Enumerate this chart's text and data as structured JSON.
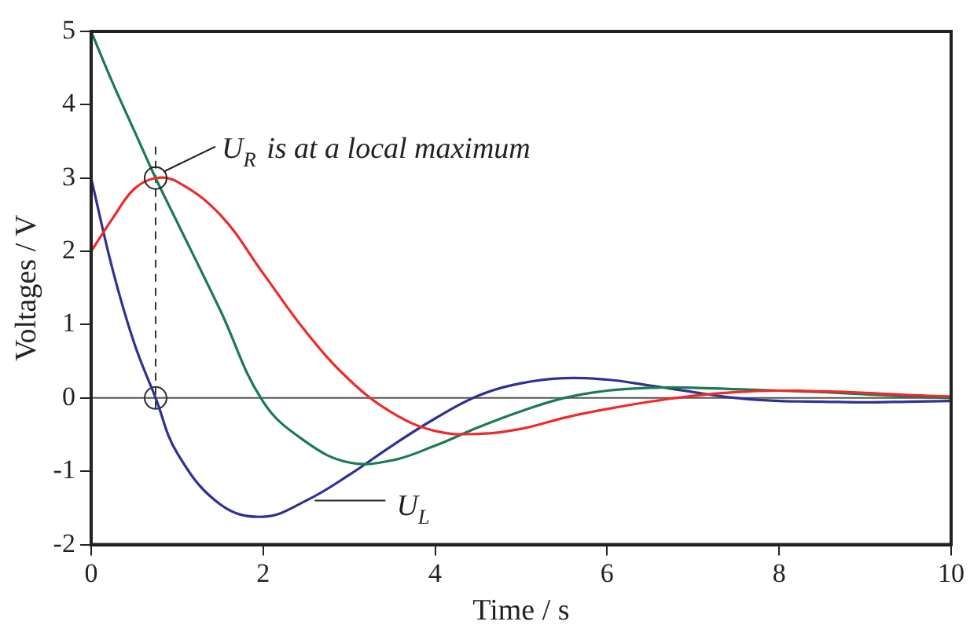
{
  "chart_data": {
    "type": "line",
    "xlabel": "Time / s",
    "ylabel": "Voltages / V",
    "xlim": [
      0,
      10
    ],
    "xticks": [
      0,
      2,
      4,
      6,
      8,
      10
    ],
    "ylim": [
      -2,
      5
    ],
    "yticks": [
      -2,
      -1,
      0,
      1,
      2,
      3,
      4,
      5
    ],
    "grid": false,
    "legend": false,
    "marker": "none",
    "line_style": "solid",
    "x": [
      0,
      0.25,
      0.5,
      0.75,
      1,
      1.5,
      2,
      2.5,
      3,
      3.5,
      4,
      4.5,
      5,
      5.5,
      6,
      6.5,
      7,
      7.5,
      8,
      8.5,
      9,
      9.5,
      10
    ],
    "series": [
      {
        "color": "#ee2a2a",
        "values": [
          2,
          2.45,
          2.85,
          3,
          2.95,
          2.5,
          1.7,
          0.9,
          0.25,
          -0.2,
          -0.45,
          -0.49,
          -0.42,
          -0.27,
          -0.15,
          -0.05,
          0.03,
          0.08,
          0.1,
          0.09,
          0.07,
          0.04,
          0.02
        ]
      },
      {
        "color": "#1b7a50",
        "values": [
          5,
          4.3,
          3.65,
          3,
          2.4,
          1.2,
          -0.05,
          -0.6,
          -0.88,
          -0.85,
          -0.65,
          -0.4,
          -0.18,
          0,
          0.1,
          0.14,
          0.14,
          0.12,
          0.1,
          0.08,
          0.05,
          0.02,
          0
        ]
      },
      {
        "color": "#2e3192",
        "values": [
          3,
          1.75,
          0.75,
          0,
          -0.75,
          -1.45,
          -1.62,
          -1.4,
          -1.05,
          -0.65,
          -0.28,
          0.03,
          0.2,
          0.27,
          0.25,
          0.17,
          0.08,
          0,
          -0.04,
          -0.05,
          -0.06,
          -0.05,
          -0.04
        ]
      }
    ],
    "ref_lines": [
      {
        "axis": "y",
        "value": 0,
        "color": "#555555",
        "line_style": "solid"
      },
      {
        "axis": "x",
        "value": 0.75,
        "color": "#333333",
        "line_style": "dashed"
      }
    ],
    "annotations": [
      {
        "text": "U$_{R}$ is at a local maximum",
        "x": 0.75,
        "y": 3
      },
      {
        "text": "U$_{L}$",
        "x": 2.6,
        "y": -1.4
      }
    ]
  }
}
